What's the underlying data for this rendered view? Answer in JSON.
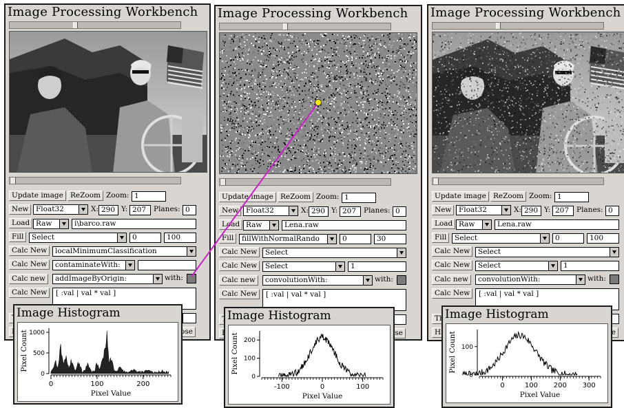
{
  "window_title": "Image Processing Workbench",
  "histogram_title": "Image Histogram",
  "labels": {
    "update": "Update image",
    "rezoom": "ReZoom",
    "zoom": "Zoom:",
    "new": "New",
    "x": "X:",
    "y": "Y:",
    "planes": "Planes:",
    "load": "Load",
    "fill": "Fill",
    "calc_new": "Calc New",
    "calc_new_lc": "Calc new",
    "with": "with:",
    "xlabel": "Pixel Value",
    "ylabel": "Pixel Count",
    "partial_th": "Th",
    "partial_hi": "Hi",
    "partial_close": "ose"
  },
  "panels": [
    {
      "zoom": "1",
      "type": "Float32",
      "x": "290",
      "y": "207",
      "planes": "0",
      "format": "Raw",
      "file": "i\\barco.raw",
      "fill": "Select",
      "fill_a": "0",
      "fill_b": "100",
      "calc1": "localMinimumClassification",
      "calc2": "contaminateWith:",
      "calc2_arg": "",
      "calc3": "addImageByOrigin:",
      "expr": "[ :val | val * val ]"
    },
    {
      "zoom": "1",
      "type": "Float32",
      "x": "290",
      "y": "207",
      "planes": "0",
      "format": "Raw",
      "file": "Lena.raw",
      "fill": "fillWithNormalRando",
      "fill_a": "0",
      "fill_b": "30",
      "calc1": "Select",
      "calc2": "Select",
      "calc2_arg": "1",
      "calc3": "convolutionWith:",
      "expr": "[ :val | val * val ]"
    },
    {
      "zoom": "1",
      "type": "Float32",
      "x": "290",
      "y": "207",
      "planes": "0",
      "format": "Raw",
      "file": "Lena.raw",
      "fill": "Select",
      "fill_a": "0",
      "fill_b": "100",
      "calc1": "Select",
      "calc2": "Select",
      "calc2_arg": "1",
      "calc3": "convolutionWith:",
      "expr": "[ :val | val * val ]"
    }
  ],
  "chart_data": [
    {
      "type": "bar",
      "xlabel": "Pixel Value",
      "ylabel": "Pixel Count",
      "xlim": [
        0,
        260
      ],
      "ylim": [
        0,
        1100
      ],
      "x_ticks": [
        "0",
        "100",
        "200"
      ],
      "y_ticks": [
        "0",
        "500",
        "1000"
      ],
      "peaks": [
        {
          "x": 10,
          "y": 280
        },
        {
          "x": 22,
          "y": 650
        },
        {
          "x": 32,
          "y": 420
        },
        {
          "x": 45,
          "y": 320
        },
        {
          "x": 60,
          "y": 250
        },
        {
          "x": 80,
          "y": 200
        },
        {
          "x": 100,
          "y": 190
        },
        {
          "x": 112,
          "y": 380
        },
        {
          "x": 120,
          "y": 980
        },
        {
          "x": 130,
          "y": 330
        },
        {
          "x": 150,
          "y": 150
        },
        {
          "x": 180,
          "y": 110
        },
        {
          "x": 210,
          "y": 70
        },
        {
          "x": 240,
          "y": 40
        }
      ]
    },
    {
      "type": "area",
      "xlabel": "Pixel Value",
      "ylabel": "Pixel Count",
      "xlim": [
        -150,
        150
      ],
      "ylim": [
        0,
        250
      ],
      "x_ticks": [
        "-100",
        "0",
        "100"
      ],
      "y_ticks": [
        "0",
        "100",
        "200"
      ],
      "mean": 0,
      "std": 30,
      "peak": 215
    },
    {
      "type": "area",
      "xlabel": "Pixel Value",
      "ylabel": "Pixel Count",
      "xlim": [
        -80,
        340
      ],
      "ylim": [
        0,
        160
      ],
      "x_ticks": [
        "0",
        "100",
        "200",
        "300"
      ],
      "y_ticks": [
        "0",
        "100"
      ],
      "mean": 60,
      "std": 55,
      "peak": 140
    }
  ]
}
